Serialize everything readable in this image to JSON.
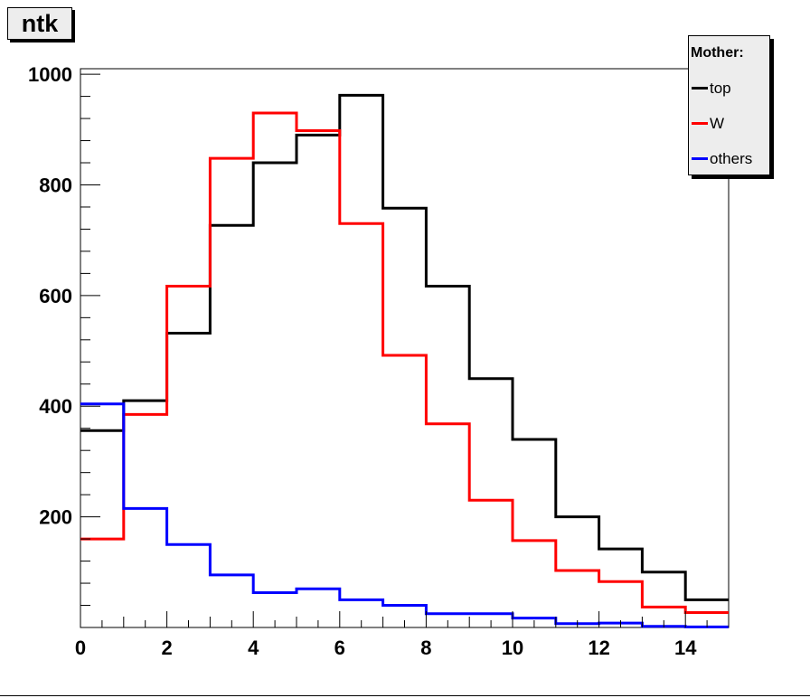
{
  "chart_data": {
    "type": "histogram",
    "title": "ntk",
    "xlabel": "",
    "ylabel": "",
    "xlim": [
      0,
      15
    ],
    "ylim": [
      0,
      1010
    ],
    "bin_edges": [
      0,
      1,
      2,
      3,
      4,
      5,
      6,
      7,
      8,
      9,
      10,
      11,
      12,
      13,
      14,
      15
    ],
    "x_ticks": [
      0,
      2,
      4,
      6,
      8,
      10,
      12,
      14
    ],
    "y_ticks": [
      200,
      400,
      600,
      800,
      1000
    ],
    "legend_title": "Mother:",
    "legend_position": "top-right",
    "series": [
      {
        "name": "top",
        "color": "#000000",
        "values": [
          356,
          410,
          532,
          727,
          840,
          890,
          962,
          758,
          617,
          450,
          340,
          200,
          142,
          100,
          50
        ]
      },
      {
        "name": "W",
        "color": "#ff0000",
        "values": [
          160,
          385,
          617,
          848,
          930,
          898,
          730,
          492,
          368,
          230,
          157,
          103,
          83,
          37,
          27
        ]
      },
      {
        "name": "others",
        "color": "#0000ff",
        "values": [
          404,
          215,
          150,
          95,
          63,
          70,
          50,
          40,
          25,
          25,
          17,
          7,
          8,
          2,
          1
        ]
      }
    ]
  }
}
